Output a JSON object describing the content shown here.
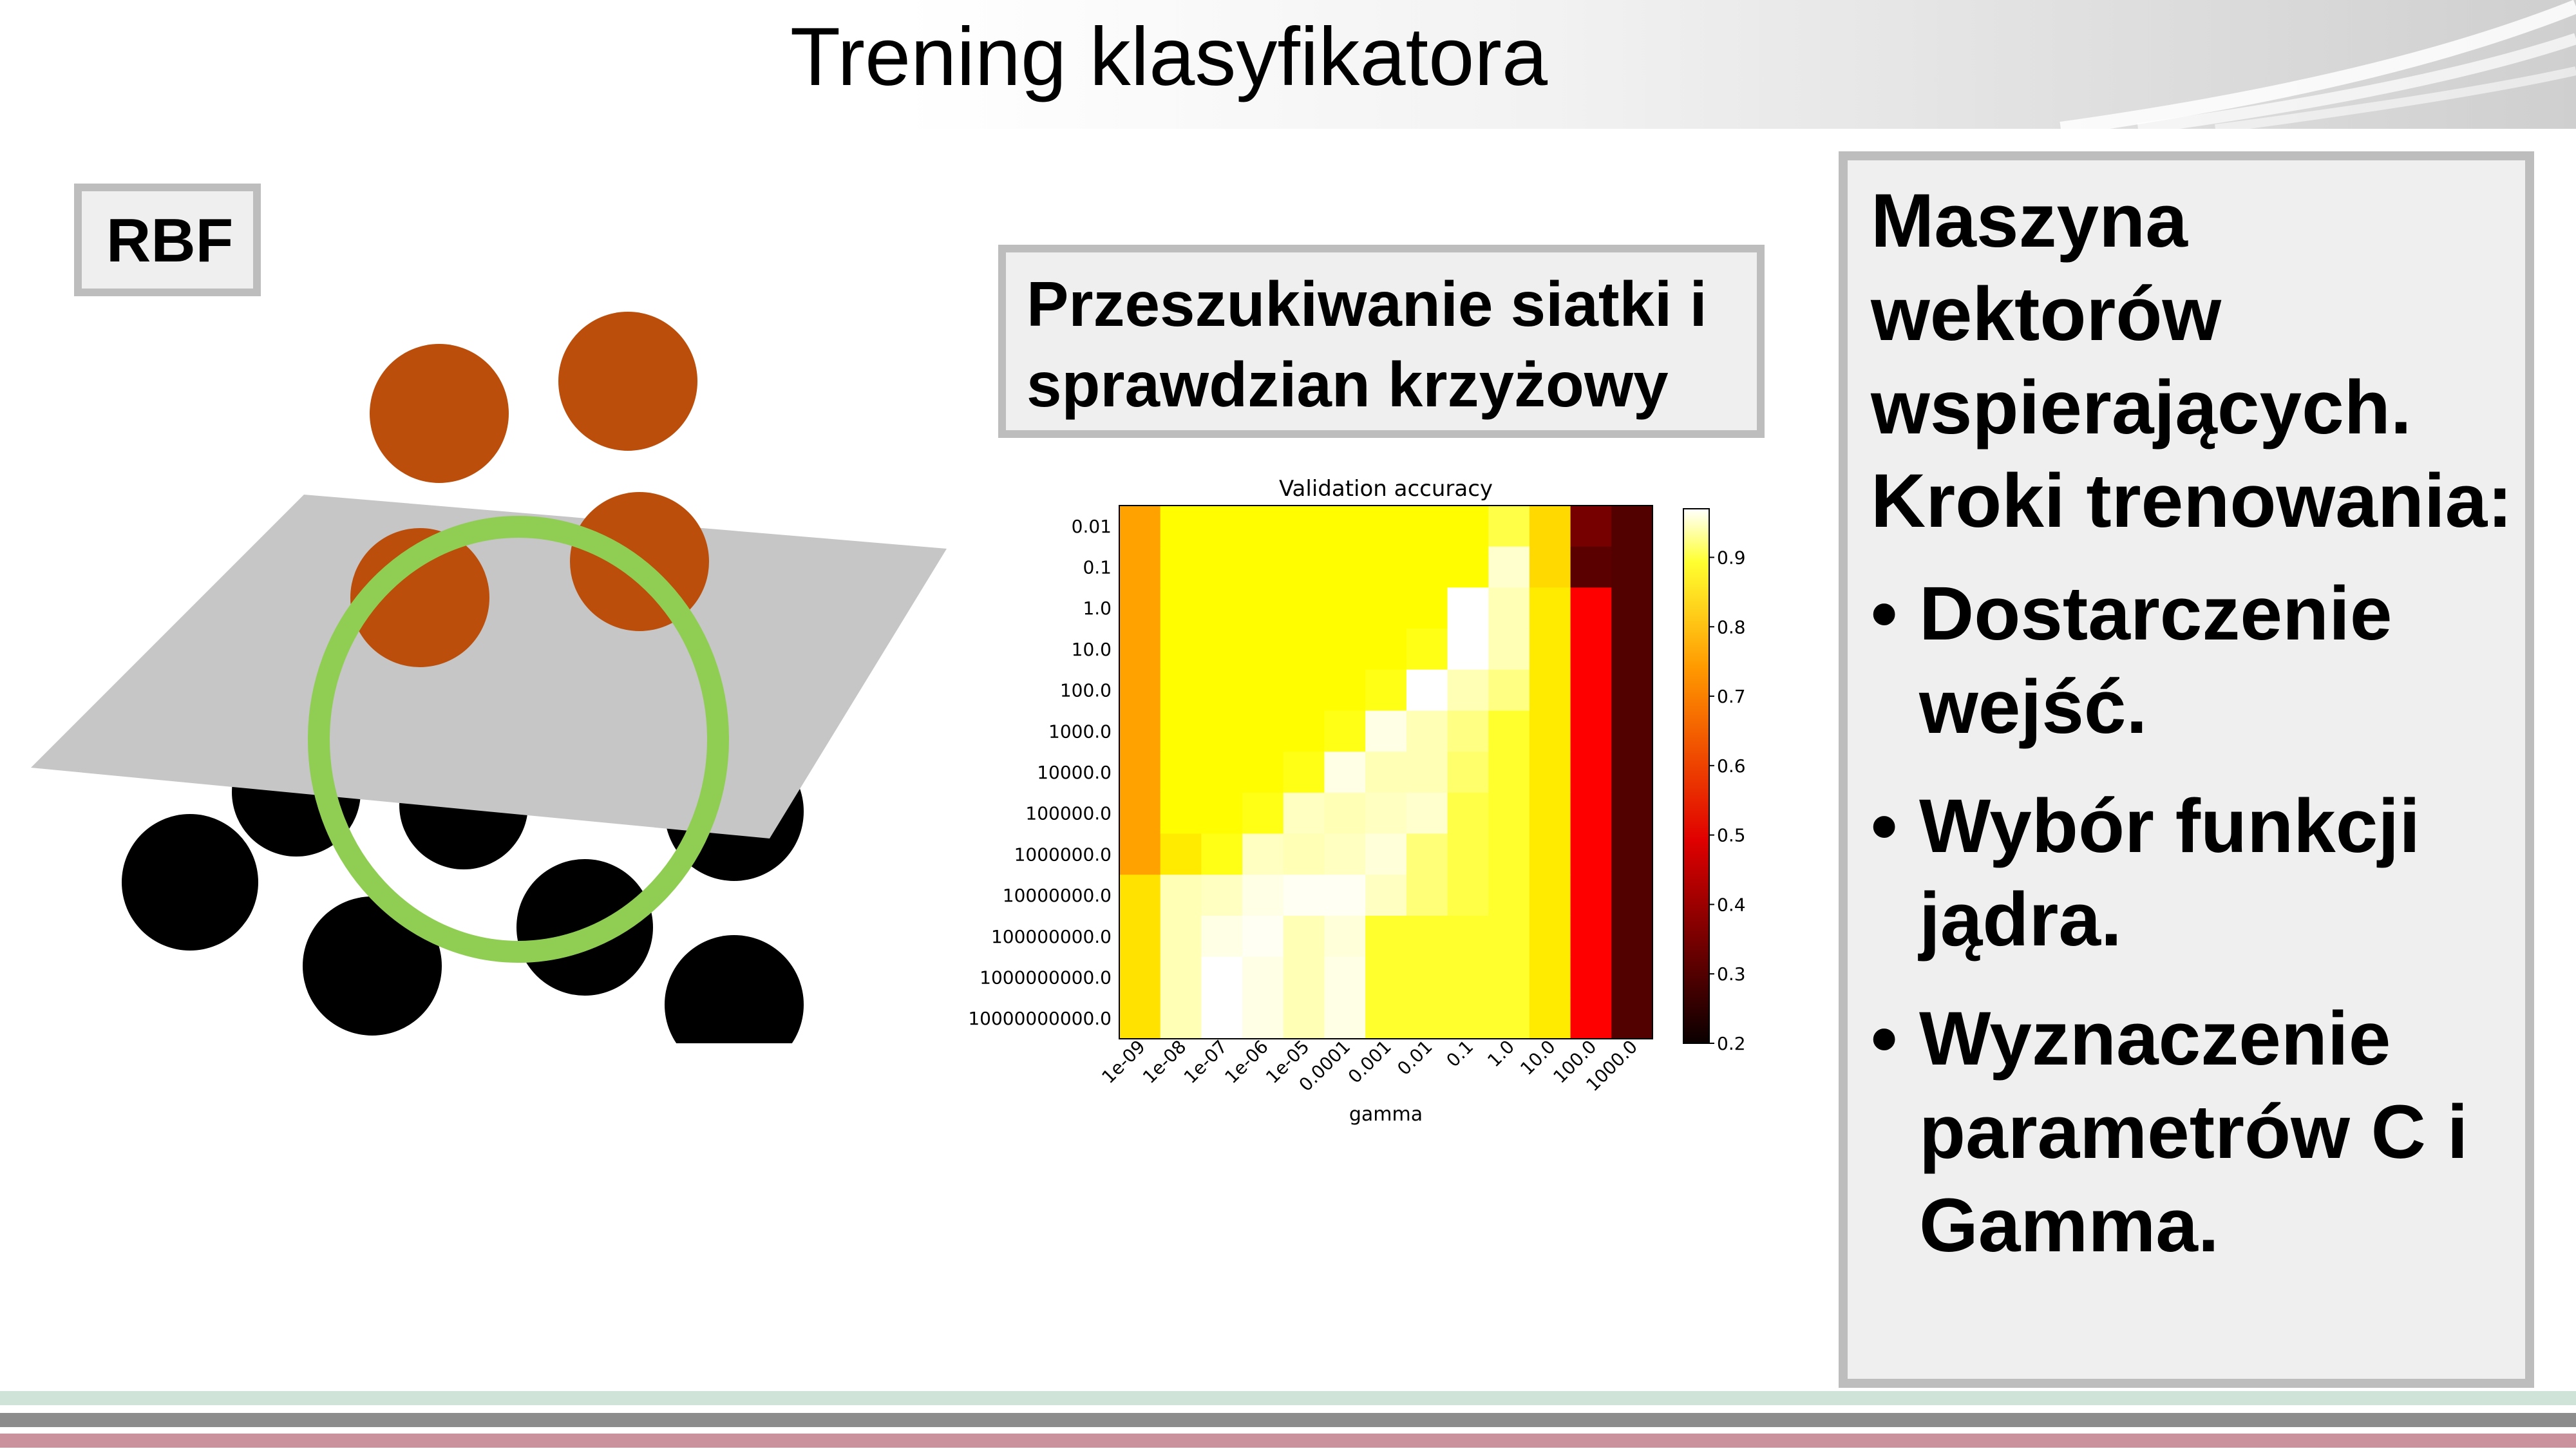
{
  "slide": {
    "title": "Trening klasyfikatora",
    "rbf_label": "RBF",
    "grid_label_line1": "Przeszukiwanie siatki i",
    "grid_label_line2": "sprawdzian krzyżowy",
    "steps_heading_lines": [
      "Maszyna",
      "wektorów",
      "wspierających.",
      "Kroki trenowania:"
    ],
    "steps": [
      {
        "line1": "Dostarczenie",
        "line2": "wejść."
      },
      {
        "line1": "Wybór funkcji",
        "line2": "jądra."
      },
      {
        "line1": "Wyznaczenie",
        "line2": "parametrów C i",
        "line3": "Gamma."
      }
    ]
  },
  "colors": {
    "orange_ball": "#bb4e0b",
    "black_ball": "#000000",
    "plane": "#c6c6c6",
    "ring": "#8fce52",
    "box_border": "#bdbdbd",
    "box_fill": "#efefef",
    "bar_green": "#cfe3d8",
    "bar_gray": "#8c8c8c",
    "bar_rose": "#c9929c"
  },
  "chart_data": {
    "type": "heatmap",
    "title": "Validation accuracy",
    "xlabel": "gamma",
    "ylabel": "",
    "x": [
      "1e-09",
      "1e-08",
      "1e-07",
      "1e-06",
      "1e-05",
      "0.0001",
      "0.001",
      "0.01",
      "0.1",
      "1.0",
      "10.0",
      "100.0",
      "1000.0"
    ],
    "y": [
      "0.01",
      "0.1",
      "1.0",
      "10.0",
      "100.0",
      "1000.0",
      "10000.0",
      "100000.0",
      "1000000.0",
      "10000000.0",
      "100000000.0",
      "1000000000.0",
      "10000000000.0"
    ],
    "values": [
      [
        0.66,
        0.76,
        0.76,
        0.76,
        0.76,
        0.76,
        0.76,
        0.76,
        0.76,
        0.82,
        0.72,
        0.33,
        0.29
      ],
      [
        0.66,
        0.76,
        0.76,
        0.76,
        0.76,
        0.76,
        0.76,
        0.76,
        0.76,
        0.93,
        0.72,
        0.3,
        0.29
      ],
      [
        0.66,
        0.76,
        0.76,
        0.76,
        0.76,
        0.76,
        0.76,
        0.76,
        0.97,
        0.91,
        0.74,
        0.48,
        0.29
      ],
      [
        0.66,
        0.76,
        0.76,
        0.76,
        0.76,
        0.76,
        0.76,
        0.78,
        0.97,
        0.91,
        0.74,
        0.48,
        0.29
      ],
      [
        0.66,
        0.76,
        0.76,
        0.76,
        0.76,
        0.76,
        0.78,
        0.97,
        0.91,
        0.87,
        0.74,
        0.48,
        0.29
      ],
      [
        0.66,
        0.76,
        0.76,
        0.76,
        0.76,
        0.78,
        0.95,
        0.91,
        0.87,
        0.8,
        0.74,
        0.48,
        0.29
      ],
      [
        0.66,
        0.76,
        0.76,
        0.76,
        0.78,
        0.95,
        0.91,
        0.91,
        0.85,
        0.8,
        0.74,
        0.48,
        0.29
      ],
      [
        0.66,
        0.76,
        0.76,
        0.78,
        0.92,
        0.91,
        0.92,
        0.93,
        0.82,
        0.8,
        0.74,
        0.48,
        0.29
      ],
      [
        0.66,
        0.74,
        0.78,
        0.92,
        0.91,
        0.92,
        0.94,
        0.86,
        0.82,
        0.8,
        0.74,
        0.48,
        0.29
      ],
      [
        0.73,
        0.91,
        0.92,
        0.95,
        0.96,
        0.96,
        0.92,
        0.86,
        0.82,
        0.8,
        0.74,
        0.48,
        0.29
      ],
      [
        0.73,
        0.91,
        0.95,
        0.96,
        0.91,
        0.94,
        0.8,
        0.8,
        0.8,
        0.8,
        0.74,
        0.48,
        0.29
      ],
      [
        0.73,
        0.91,
        0.98,
        0.95,
        0.91,
        0.95,
        0.8,
        0.8,
        0.8,
        0.8,
        0.74,
        0.48,
        0.29
      ],
      [
        0.73,
        0.91,
        0.98,
        0.95,
        0.91,
        0.95,
        0.8,
        0.8,
        0.8,
        0.8,
        0.74,
        0.48,
        0.29
      ]
    ],
    "colorbar": {
      "ticks": [
        0.2,
        0.3,
        0.4,
        0.5,
        0.6,
        0.7,
        0.8,
        0.9
      ],
      "range": [
        0.2,
        0.97
      ],
      "colormap": "hot"
    },
    "legend": "colorbar-right",
    "grid": false
  }
}
